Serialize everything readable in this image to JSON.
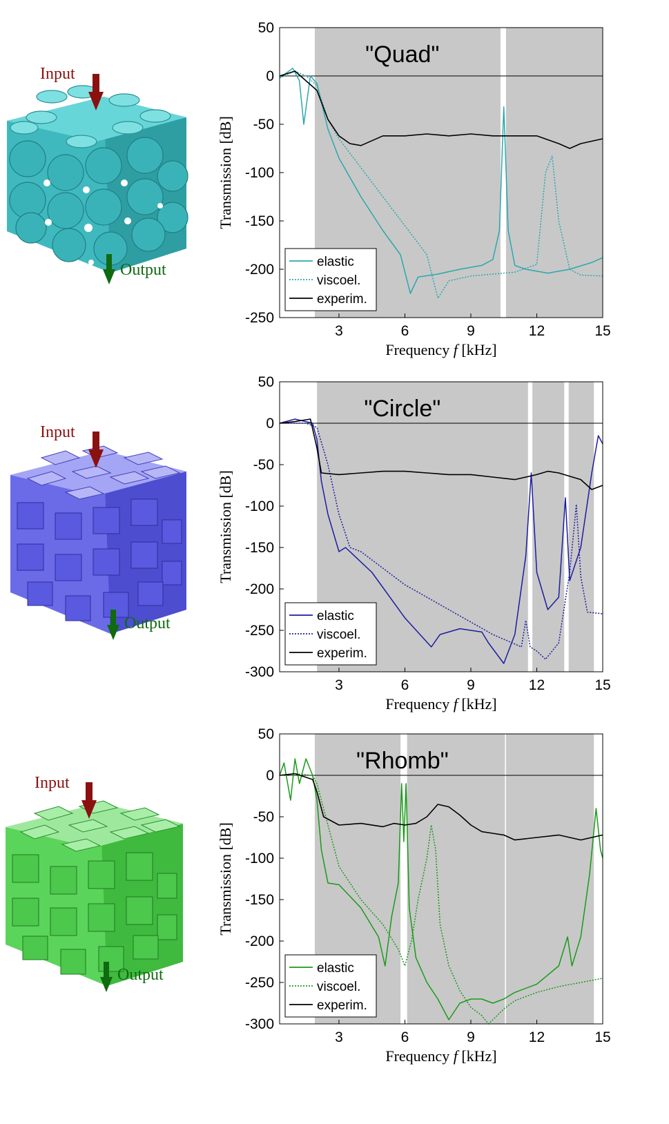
{
  "input_label": "Input",
  "output_label": "Output",
  "chart_data": [
    {
      "type": "line",
      "title": "\"Quad\"",
      "xlabel": "Frequency f [kHz]",
      "xlabel_parts": {
        "pre": "Frequency ",
        "var": "f",
        "post": " [kHz]"
      },
      "ylabel": "Transmission [dB]",
      "xlim": [
        0.3,
        15
      ],
      "ylim": [
        -250,
        50
      ],
      "xticks": [
        3,
        6,
        9,
        12,
        15
      ],
      "yticks": [
        50,
        0,
        -50,
        -100,
        -150,
        -200,
        -250
      ],
      "grid": false,
      "legend_position": "bottom-left",
      "band_gaps": [
        [
          1.9,
          10.35
        ],
        [
          10.6,
          15
        ]
      ],
      "colors": {
        "elastic": "#2ba7ad",
        "viscoel": "#2ba7ad",
        "experim": "#000000",
        "input_arrow": "#8b1010",
        "output_arrow": "#0f6a10",
        "cube": "#47c4c8"
      },
      "series": [
        {
          "name": "elastic",
          "style": "solid",
          "x": [
            0.3,
            0.9,
            1.2,
            1.4,
            1.7,
            2.0,
            2.5,
            3.0,
            4.0,
            5.0,
            5.8,
            6.25,
            6.6,
            7.5,
            8.5,
            9.5,
            10.0,
            10.3,
            10.5,
            10.7,
            11.0,
            11.5,
            12.5,
            13.5,
            14.5,
            15.0
          ],
          "y": [
            -2,
            8,
            -5,
            -50,
            0,
            -8,
            -55,
            -85,
            -125,
            -160,
            -185,
            -225,
            -208,
            -205,
            -200,
            -196,
            -190,
            -160,
            -32,
            -160,
            -196,
            -200,
            -204,
            -200,
            -193,
            -188
          ]
        },
        {
          "name": "viscoel.",
          "style": "dotted",
          "x": [
            0.3,
            1.0,
            1.5,
            2.0,
            2.5,
            3.0,
            4.0,
            5.0,
            6.0,
            7.0,
            7.5,
            8.0,
            9.0,
            10.0,
            11.0,
            12.0,
            12.4,
            12.7,
            13.0,
            13.5,
            14.0,
            15.0
          ],
          "y": [
            -2,
            5,
            0,
            -10,
            -45,
            -65,
            -95,
            -125,
            -155,
            -185,
            -230,
            -212,
            -207,
            -205,
            -203,
            -195,
            -100,
            -83,
            -150,
            -200,
            -206,
            -207
          ]
        },
        {
          "name": "experim.",
          "style": "solid",
          "x": [
            0.3,
            1.0,
            1.5,
            2.0,
            2.5,
            3.0,
            3.5,
            4.0,
            5.0,
            6.0,
            7.0,
            8.0,
            9.0,
            10.0,
            11.0,
            12.0,
            13.0,
            13.5,
            14.0,
            15.0
          ],
          "y": [
            0,
            5,
            -5,
            -15,
            -45,
            -62,
            -70,
            -72,
            -62,
            -62,
            -60,
            -62,
            -60,
            -62,
            -62,
            -62,
            -70,
            -75,
            -70,
            -65
          ]
        }
      ]
    },
    {
      "type": "line",
      "title": "\"Circle\"",
      "xlabel": "Frequency f [kHz]",
      "xlabel_parts": {
        "pre": "Frequency ",
        "var": "f",
        "post": " [kHz]"
      },
      "ylabel": "Transmission [dB]",
      "xlim": [
        0.3,
        15
      ],
      "ylim": [
        -300,
        50
      ],
      "xticks": [
        3,
        6,
        9,
        12,
        15
      ],
      "yticks": [
        50,
        0,
        -50,
        -100,
        -150,
        -200,
        -250,
        -300
      ],
      "grid": false,
      "legend_position": "bottom-left",
      "band_gaps": [
        [
          2.0,
          11.6
        ],
        [
          11.8,
          13.25
        ],
        [
          13.45,
          14.6
        ]
      ],
      "colors": {
        "elastic": "#1c1ca0",
        "viscoel": "#1c1ca0",
        "experim": "#000000",
        "input_arrow": "#8b1010",
        "output_arrow": "#0f6a10",
        "cube": "#6060e8"
      },
      "series": [
        {
          "name": "elastic",
          "style": "solid",
          "x": [
            0.3,
            1.0,
            1.8,
            2.0,
            2.2,
            2.5,
            3.0,
            3.3,
            4.5,
            6.0,
            7.2,
            7.6,
            8.5,
            9.5,
            9.8,
            10.5,
            11.0,
            11.5,
            11.75,
            12.0,
            12.5,
            13.0,
            13.3,
            13.5,
            14.0,
            14.5,
            14.8,
            15.0
          ],
          "y": [
            0,
            5,
            0,
            -20,
            -70,
            -110,
            -155,
            -150,
            -180,
            -235,
            -270,
            -255,
            -248,
            -252,
            -265,
            -290,
            -255,
            -160,
            -60,
            -180,
            -225,
            -210,
            -90,
            -190,
            -150,
            -60,
            -15,
            -25
          ]
        },
        {
          "name": "viscoel.",
          "style": "dotted",
          "x": [
            0.3,
            1.5,
            2.0,
            2.5,
            3.0,
            3.5,
            4.0,
            6.0,
            8.0,
            10.0,
            11.3,
            11.5,
            11.7,
            12.0,
            12.4,
            13.0,
            13.5,
            13.8,
            14.0,
            14.3,
            15.0
          ],
          "y": [
            0,
            0,
            -5,
            -50,
            -110,
            -150,
            -155,
            -195,
            -225,
            -255,
            -270,
            -238,
            -270,
            -275,
            -285,
            -265,
            -180,
            -98,
            -185,
            -228,
            -230
          ]
        },
        {
          "name": "experim.",
          "style": "solid",
          "x": [
            0.3,
            1.0,
            1.7,
            2.0,
            2.2,
            3.0,
            4.0,
            5.0,
            6.0,
            7.0,
            8.0,
            9.0,
            10.0,
            11.0,
            12.0,
            12.5,
            13.0,
            14.0,
            14.5,
            15.0
          ],
          "y": [
            0,
            2,
            5,
            -30,
            -60,
            -62,
            -60,
            -58,
            -58,
            -60,
            -62,
            -62,
            -65,
            -68,
            -62,
            -58,
            -60,
            -68,
            -80,
            -75
          ]
        }
      ]
    },
    {
      "type": "line",
      "title": "\"Rhomb\"",
      "xlabel": "Frequency f [kHz]",
      "xlabel_parts": {
        "pre": "Frequency ",
        "var": "f",
        "post": " [kHz]"
      },
      "ylabel": "Transmission [dB]",
      "xlim": [
        0.3,
        15
      ],
      "ylim": [
        -300,
        50
      ],
      "xticks": [
        3,
        6,
        9,
        12,
        15
      ],
      "yticks": [
        50,
        0,
        -50,
        -100,
        -150,
        -200,
        -250,
        -300
      ],
      "grid": false,
      "legend_position": "bottom-left",
      "band_gaps": [
        [
          1.9,
          5.8
        ],
        [
          6.1,
          10.55
        ],
        [
          10.6,
          14.6
        ]
      ],
      "colors": {
        "elastic": "#199a19",
        "viscoel": "#199a19",
        "experim": "#000000",
        "input_arrow": "#8b1010",
        "output_arrow": "#0f6a10",
        "cube": "#52d452"
      },
      "series": [
        {
          "name": "elastic",
          "style": "solid",
          "x": [
            0.3,
            0.5,
            0.8,
            1.0,
            1.2,
            1.5,
            1.8,
            2.0,
            2.2,
            2.5,
            3.0,
            4.0,
            4.8,
            5.1,
            5.4,
            5.7,
            5.85,
            5.95,
            6.05,
            6.2,
            6.5,
            7.0,
            7.5,
            8.0,
            8.5,
            9.0,
            9.5,
            10.0,
            10.5,
            11.0,
            12.0,
            13.0,
            13.4,
            13.6,
            14.0,
            14.4,
            14.7,
            14.9,
            15.0
          ],
          "y": [
            0,
            15,
            -30,
            20,
            -10,
            20,
            0,
            -30,
            -90,
            -130,
            -132,
            -160,
            -195,
            -230,
            -170,
            -130,
            -10,
            -80,
            -10,
            -160,
            -220,
            -250,
            -270,
            -295,
            -275,
            -270,
            -270,
            -275,
            -270,
            -262,
            -252,
            -230,
            -195,
            -230,
            -195,
            -120,
            -40,
            -90,
            -100
          ]
        },
        {
          "name": "viscoel.",
          "style": "dotted",
          "x": [
            0.3,
            1.0,
            1.8,
            2.0,
            2.5,
            3.0,
            3.5,
            4.0,
            5.0,
            5.7,
            6.0,
            6.3,
            6.6,
            7.0,
            7.2,
            7.4,
            7.6,
            8.0,
            8.5,
            9.0,
            9.5,
            9.8,
            10.0,
            10.5,
            11.0,
            12.0,
            13.0,
            14.0,
            15.0
          ],
          "y": [
            0,
            2,
            0,
            -10,
            -60,
            -110,
            -130,
            -150,
            -180,
            -210,
            -230,
            -200,
            -150,
            -100,
            -60,
            -90,
            -180,
            -230,
            -260,
            -280,
            -290,
            -300,
            -295,
            -282,
            -272,
            -262,
            -255,
            -250,
            -245
          ]
        },
        {
          "name": "experim.",
          "style": "solid",
          "x": [
            0.3,
            1.0,
            1.8,
            2.0,
            2.3,
            3.0,
            4.0,
            5.0,
            5.5,
            6.0,
            6.5,
            7.0,
            7.5,
            8.0,
            8.5,
            9.0,
            9.5,
            10.0,
            10.5,
            11.0,
            12.0,
            13.0,
            14.0,
            15.0
          ],
          "y": [
            0,
            2,
            -5,
            -20,
            -50,
            -60,
            -58,
            -62,
            -58,
            -60,
            -58,
            -50,
            -35,
            -38,
            -48,
            -60,
            -68,
            -70,
            -72,
            -78,
            -75,
            -72,
            -78,
            -72
          ]
        }
      ]
    }
  ],
  "legend_labels": [
    "elastic",
    "viscoel.",
    "experim."
  ]
}
